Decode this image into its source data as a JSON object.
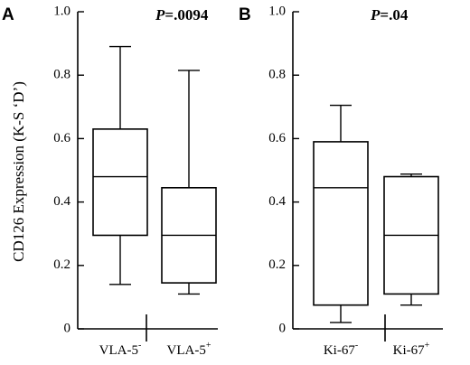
{
  "figure": {
    "ylabel": "CD126 Expression (K-S ‘D’)"
  },
  "chart_data": [
    {
      "type": "box",
      "panel_label": "A",
      "annotation": "P=.0094",
      "annotation_italic": "P",
      "annotation_rest": "=.0094",
      "ylabel": "CD126 Expression (K-S ‘D’)",
      "ylim": [
        0,
        1.0
      ],
      "yticks": [
        "0",
        "0.2",
        "0.4",
        "0.6",
        "0.8",
        "1.0"
      ],
      "ytick_values": [
        0,
        0.2,
        0.4,
        0.6,
        0.8,
        1.0
      ],
      "categories": [
        "VLA-5-",
        "VLA-5+"
      ],
      "category_base": [
        "VLA-5",
        "VLA-5"
      ],
      "category_sup": [
        "-",
        "+"
      ],
      "boxes": [
        {
          "whisker_low": 0.14,
          "q1": 0.295,
          "median": 0.48,
          "q3": 0.63,
          "whisker_high": 0.89
        },
        {
          "whisker_low": 0.11,
          "q1": 0.145,
          "median": 0.295,
          "q3": 0.445,
          "whisker_high": 0.815
        }
      ]
    },
    {
      "type": "box",
      "panel_label": "B",
      "annotation": "P=.04",
      "annotation_italic": "P",
      "annotation_rest": "=.04",
      "ylim": [
        0,
        1.0
      ],
      "yticks": [
        "0",
        "0.2",
        "0.4",
        "0.6",
        "0.8",
        "1.0"
      ],
      "ytick_values": [
        0,
        0.2,
        0.4,
        0.6,
        0.8,
        1.0
      ],
      "categories": [
        "Ki-67-",
        "Ki-67+"
      ],
      "category_base": [
        "Ki-67",
        "Ki-67"
      ],
      "category_sup": [
        "-",
        "+"
      ],
      "boxes": [
        {
          "whisker_low": 0.02,
          "q1": 0.075,
          "median": 0.445,
          "q3": 0.59,
          "whisker_high": 0.705
        },
        {
          "whisker_low": 0.075,
          "q1": 0.11,
          "median": 0.295,
          "q3": 0.48,
          "whisker_high": 0.488
        }
      ]
    }
  ]
}
